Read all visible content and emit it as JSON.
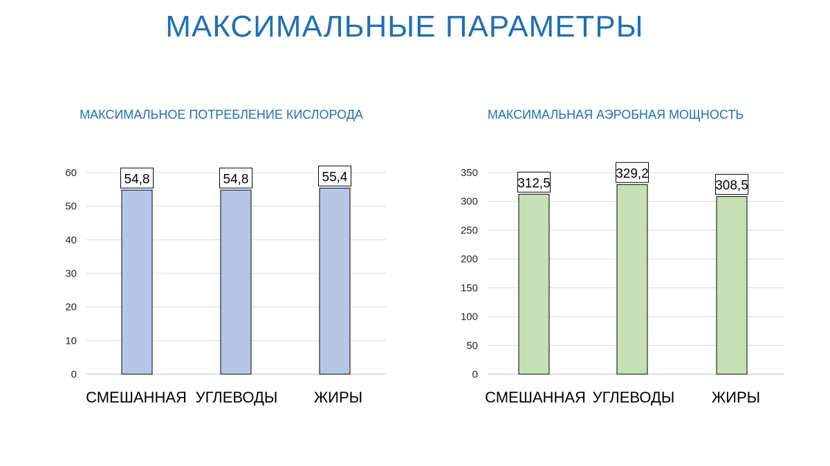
{
  "page": {
    "title": "МАКСИМАЛЬНЫЕ ПАРАМЕТРЫ"
  },
  "chart_data": [
    {
      "type": "bar",
      "title": "МАКСИМАЛЬНОЕ ПОТРЕБЛЕНИЕ КИСЛОРОДА",
      "categories": [
        "СМЕШАННАЯ",
        "УГЛЕВОДЫ",
        "ЖИРЫ"
      ],
      "values": [
        54.8,
        54.8,
        55.4
      ],
      "value_labels": [
        "54,8",
        "54,8",
        "55,4"
      ],
      "ylim": [
        0,
        60
      ],
      "yticks": [
        0,
        10,
        20,
        30,
        40,
        50,
        60
      ],
      "grid": true,
      "bar_color": "#B4C7E7"
    },
    {
      "type": "bar",
      "title": "МАКСИМАЛЬНАЯ АЭРОБНАЯ МОЩНОСТЬ",
      "categories": [
        "СМЕШАННАЯ",
        "УГЛЕВОДЫ",
        "ЖИРЫ"
      ],
      "values": [
        312.5,
        329.2,
        308.5
      ],
      "value_labels": [
        "312,5",
        "329,2",
        "308,5"
      ],
      "ylim": [
        0,
        350
      ],
      "yticks": [
        0,
        50,
        100,
        150,
        200,
        250,
        300,
        350
      ],
      "grid": true,
      "bar_color": "#C5E0B4"
    }
  ]
}
